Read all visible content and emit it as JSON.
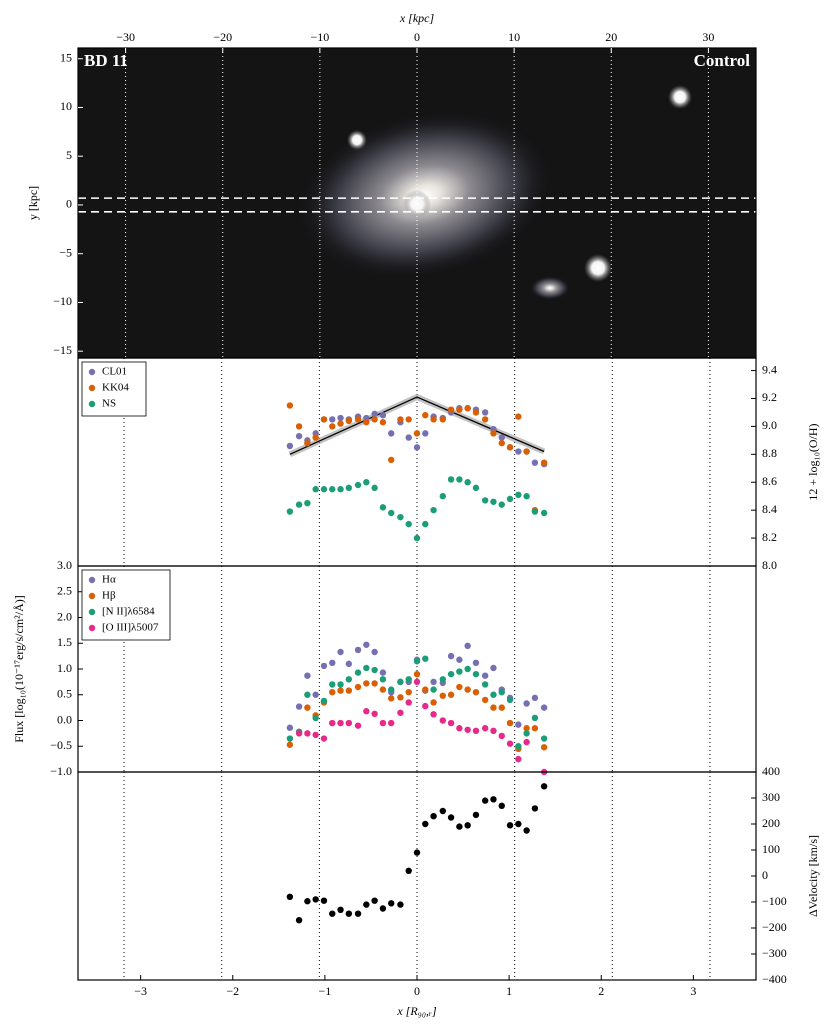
{
  "chart_data": [
    {
      "type": "image",
      "left_label": "BD 11",
      "right_label": "Control",
      "x_label": "x [kpc]",
      "y_label": "y [kpc]",
      "xlim": [
        -34.9,
        34.9
      ],
      "xticks": [
        {
          "value": -30,
          "label": "−30"
        },
        {
          "value": -20,
          "label": "−20"
        },
        {
          "value": -10,
          "label": "−10"
        },
        0,
        10,
        20,
        30
      ],
      "x_axis_side": "top",
      "grid": true,
      "ylim": [
        -15.7,
        16.1
      ],
      "yticks": [
        {
          "value": -15,
          "label": "−15"
        },
        {
          "value": -10,
          "label": "−10"
        },
        {
          "value": -5,
          "label": "−5"
        },
        0,
        5,
        10,
        15
      ],
      "y_axis_side": "left",
      "slit_y": [
        -0.7,
        0.7
      ]
    },
    {
      "type": "scatter",
      "y_label": "12 + log₁₀(O/H)",
      "y_axis_side": "right",
      "legend": "upper left",
      "xlim": [
        -3.68,
        3.68
      ],
      "vlines": [
        -3.18,
        -2.12,
        -1.06,
        0,
        1.06,
        2.12,
        3.18
      ],
      "ylim": [
        8.0,
        9.49
      ],
      "yticks": [
        {
          "value": 8.0,
          "label": "8.0"
        },
        8.2,
        8.4,
        8.6,
        8.8,
        {
          "value": 9.0,
          "label": "9.0"
        },
        9.2,
        9.4
      ],
      "x": [
        -1.38,
        -1.28,
        -1.19,
        -1.1,
        -1.01,
        -0.92,
        -0.83,
        -0.74,
        -0.64,
        -0.55,
        -0.46,
        -0.37,
        -0.28,
        -0.18,
        -0.09,
        0,
        0.09,
        0.18,
        0.28,
        0.37,
        0.46,
        0.55,
        0.64,
        0.74,
        0.83,
        0.92,
        1.01,
        1.1,
        1.19,
        1.28,
        1.38
      ],
      "series": [
        {
          "name": "CL01",
          "color": "#7570b3",
          "values": [
            8.86,
            8.93,
            8.9,
            8.95,
            9.05,
            9.05,
            9.06,
            9.05,
            9.07,
            9.06,
            9.09,
            9.08,
            8.95,
            9.03,
            8.92,
            8.85,
            8.95,
            9.07,
            9.06,
            9.1,
            9.13,
            9.13,
            9.12,
            9.1,
            8.98,
            8.92,
            8.85,
            8.82,
            8.82,
            8.74,
            8.73
          ]
        },
        {
          "name": "KK04",
          "color": "#d95f02",
          "values": [
            9.15,
            9.0,
            8.88,
            8.92,
            9.05,
            9.0,
            9.02,
            9.04,
            9.05,
            9.03,
            9.05,
            9.03,
            8.76,
            9.05,
            9.05,
            8.95,
            9.08,
            9.05,
            9.05,
            9.12,
            9.12,
            9.13,
            9.1,
            9.05,
            8.95,
            8.88,
            8.85,
            9.07,
            8.82,
            8.4,
            8.74
          ]
        },
        {
          "name": "NS",
          "color": "#1b9e77",
          "values": [
            8.39,
            8.44,
            8.45,
            8.55,
            8.55,
            8.55,
            8.55,
            8.56,
            8.58,
            8.6,
            8.56,
            8.42,
            8.38,
            8.35,
            8.3,
            8.2,
            8.3,
            8.4,
            8.5,
            8.62,
            8.62,
            8.6,
            8.56,
            8.47,
            8.46,
            8.44,
            8.48,
            8.51,
            8.5,
            8.39,
            8.38
          ]
        }
      ],
      "fit": {
        "x": [
          -1.38,
          0,
          1.38
        ],
        "values": [
          8.8,
          9.21,
          8.82
        ]
      }
    },
    {
      "type": "scatter",
      "y_label": "Flux [log₁₀(10⁻¹⁷erg/s/cm²/Å)]",
      "y_axis_side": "left",
      "legend": "upper left",
      "xlim": [
        -3.68,
        3.68
      ],
      "vlines": [
        -3.18,
        -2.12,
        -1.06,
        0,
        1.06,
        2.12,
        3.18
      ],
      "ylim": [
        -1.0,
        3.0
      ],
      "yticks": [
        {
          "value": -1.0,
          "label": "−1.0"
        },
        {
          "value": -0.5,
          "label": "−0.5"
        },
        {
          "value": 0.0,
          "label": "0.0"
        },
        0.5,
        {
          "value": 1.0,
          "label": "1.0"
        },
        1.5,
        {
          "value": 2.0,
          "label": "2.0"
        },
        2.5,
        {
          "value": 3.0,
          "label": "3.0"
        }
      ],
      "x": [
        -1.38,
        -1.28,
        -1.19,
        -1.1,
        -1.01,
        -0.92,
        -0.83,
        -0.74,
        -0.64,
        -0.55,
        -0.46,
        -0.37,
        -0.28,
        -0.18,
        -0.09,
        0,
        0.09,
        0.18,
        0.28,
        0.37,
        0.46,
        0.55,
        0.64,
        0.74,
        0.83,
        0.92,
        1.01,
        1.1,
        1.19,
        1.28,
        1.38
      ],
      "series": [
        {
          "name": "Hα",
          "color": "#7570b3",
          "values": [
            -0.14,
            0.27,
            0.87,
            0.5,
            1.06,
            1.12,
            1.33,
            1.1,
            1.37,
            1.47,
            1.33,
            0.93,
            0.55,
            0.75,
            0.75,
            1.18,
            0.58,
            0.75,
            0.73,
            1.25,
            1.18,
            1.45,
            1.12,
            0.87,
            1.02,
            0.6,
            0.44,
            -0.08,
            0.33,
            0.44,
            0.25
          ]
        },
        {
          "name": "Hβ",
          "color": "#d95f02",
          "values": [
            -0.47,
            -0.22,
            0.25,
            0.1,
            0.35,
            0.55,
            0.58,
            0.58,
            0.65,
            0.72,
            0.72,
            0.6,
            0.43,
            0.45,
            0.55,
            0.9,
            0.6,
            0.35,
            0.48,
            0.5,
            0.65,
            0.6,
            0.55,
            0.4,
            0.25,
            0.25,
            -0.05,
            -0.55,
            -0.15,
            -0.15,
            -0.52
          ]
        },
        {
          "name": "[N II]λ6584",
          "color": "#1b9e77",
          "values": [
            -0.35,
            -0.22,
            0.5,
            0.05,
            0.38,
            0.7,
            0.7,
            0.8,
            0.93,
            1.02,
            0.98,
            0.8,
            0.6,
            0.75,
            0.8,
            1.15,
            1.2,
            0.6,
            0.8,
            0.9,
            0.95,
            1.0,
            0.9,
            0.7,
            0.5,
            0.55,
            0.4,
            -0.5,
            -0.25,
            0.05,
            -0.35
          ]
        },
        {
          "name": "[O III]λ5007",
          "color": "#e7298a",
          "values": [
            null,
            -0.25,
            -0.25,
            -0.28,
            -0.35,
            -0.05,
            -0.05,
            -0.05,
            -0.1,
            0.18,
            0.13,
            -0.05,
            -0.05,
            0.15,
            0.35,
            0.75,
            0.28,
            0.12,
            0.0,
            -0.05,
            -0.15,
            -0.18,
            -0.2,
            -0.15,
            -0.2,
            -0.3,
            -0.45,
            -0.75,
            -0.42,
            null,
            -1.0
          ]
        }
      ]
    },
    {
      "type": "scatter",
      "y_label": "ΔVelocity [km/s]",
      "y_axis_side": "right",
      "x_label": "x [R₉₀,ᵣ]",
      "xlim": [
        -3.68,
        3.68
      ],
      "vlines": [
        -3.18,
        -2.12,
        -1.06,
        0,
        1.06,
        2.12,
        3.18
      ],
      "xticks": [
        {
          "value": -3,
          "label": "−3"
        },
        {
          "value": -2,
          "label": "−2"
        },
        {
          "value": -1,
          "label": "−1"
        },
        0,
        1,
        2,
        3
      ],
      "x_axis_side": "bottom",
      "ylim": [
        -400,
        400
      ],
      "yticks": [
        {
          "value": -400,
          "label": "−400"
        },
        {
          "value": -300,
          "label": "−300"
        },
        {
          "value": -200,
          "label": "−200"
        },
        {
          "value": -100,
          "label": "−100"
        },
        0,
        100,
        200,
        300,
        400
      ],
      "x": [
        -1.38,
        -1.28,
        -1.19,
        -1.1,
        -1.01,
        -0.92,
        -0.83,
        -0.74,
        -0.64,
        -0.55,
        -0.46,
        -0.37,
        -0.28,
        -0.18,
        -0.09,
        0,
        0.09,
        0.18,
        0.28,
        0.37,
        0.46,
        0.55,
        0.64,
        0.74,
        0.83,
        0.92,
        1.01,
        1.1,
        1.19,
        1.28,
        1.38
      ],
      "series": [
        {
          "color": "#000000",
          "values": [
            -80,
            -170,
            -97,
            -90,
            -95,
            -145,
            -130,
            -145,
            -145,
            -110,
            -95,
            -125,
            -105,
            -110,
            20,
            90,
            200,
            230,
            250,
            225,
            190,
            195,
            235,
            290,
            295,
            270,
            195,
            200,
            175,
            260,
            345
          ]
        }
      ]
    }
  ]
}
